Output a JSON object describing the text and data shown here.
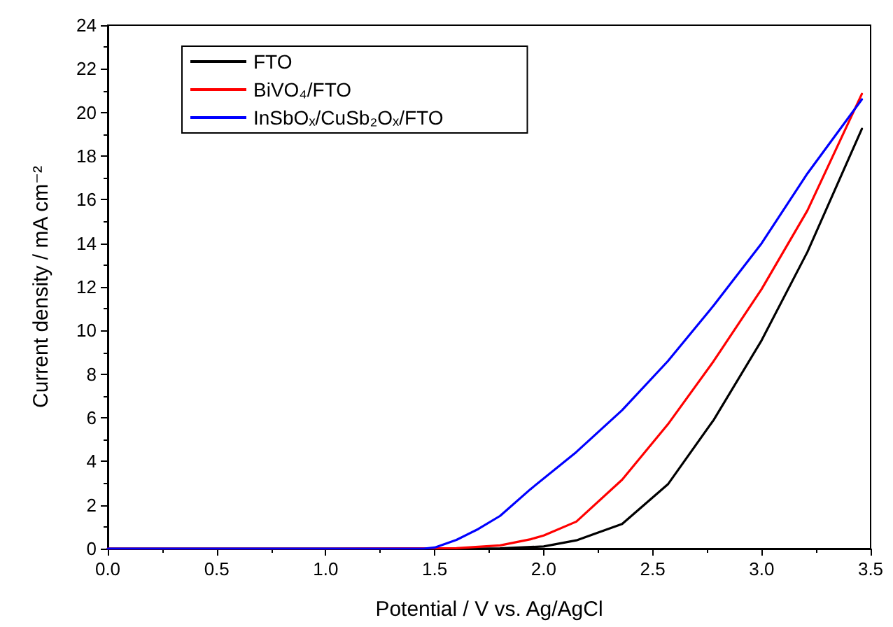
{
  "chart_data": {
    "type": "line",
    "xlabel": "Potential / V vs. Ag/AgCl",
    "ylabel": "Current density / mA cm⁻²",
    "xlim": [
      0,
      3.5
    ],
    "xticks": [
      {
        "value": 0,
        "label": "0.0"
      },
      0.5,
      {
        "value": 1,
        "label": "1.0"
      },
      1.5,
      {
        "value": 2,
        "label": "2.0"
      },
      2.5,
      {
        "value": 3,
        "label": "3.0"
      },
      3.5
    ],
    "ylim": [
      0,
      24
    ],
    "yticks": [
      0,
      2,
      4,
      6,
      8,
      10,
      12,
      14,
      16,
      18,
      20,
      22,
      24
    ],
    "grid": false,
    "legend": "top left",
    "marker": "none",
    "line_style": "solid",
    "series": [
      {
        "name": "FTO",
        "color": "#000000",
        "x": [
          0,
          1.0,
          1.6,
          1.8,
          2.0,
          2.15,
          2.36,
          2.57,
          2.78,
          3.0,
          3.21,
          3.46
        ],
        "values": [
          0,
          0,
          0,
          0.01,
          0.1,
          0.38,
          1.13,
          2.95,
          5.9,
          9.55,
          13.6,
          19.25
        ]
      },
      {
        "name": "BiVO₄/FTO",
        "color": "#ff0000",
        "x": [
          0,
          1.0,
          1.6,
          1.8,
          1.94,
          2.0,
          2.15,
          2.36,
          2.57,
          2.78,
          3.0,
          3.21,
          3.46
        ],
        "values": [
          0,
          0,
          0.02,
          0.15,
          0.43,
          0.6,
          1.24,
          3.16,
          5.7,
          8.6,
          11.9,
          15.5,
          20.85
        ]
      },
      {
        "name": "InSbOₓ/CuSb₂Oₓ/FTO",
        "color": "#0000ff",
        "x": [
          0,
          1.0,
          1.45,
          1.5,
          1.6,
          1.7,
          1.8,
          1.94,
          2.15,
          2.36,
          2.57,
          2.78,
          3.0,
          3.21,
          3.46
        ],
        "values": [
          0,
          0,
          0,
          0.05,
          0.4,
          0.9,
          1.5,
          2.73,
          4.43,
          6.35,
          8.6,
          11.15,
          14.0,
          17.2,
          20.6
        ]
      }
    ]
  }
}
